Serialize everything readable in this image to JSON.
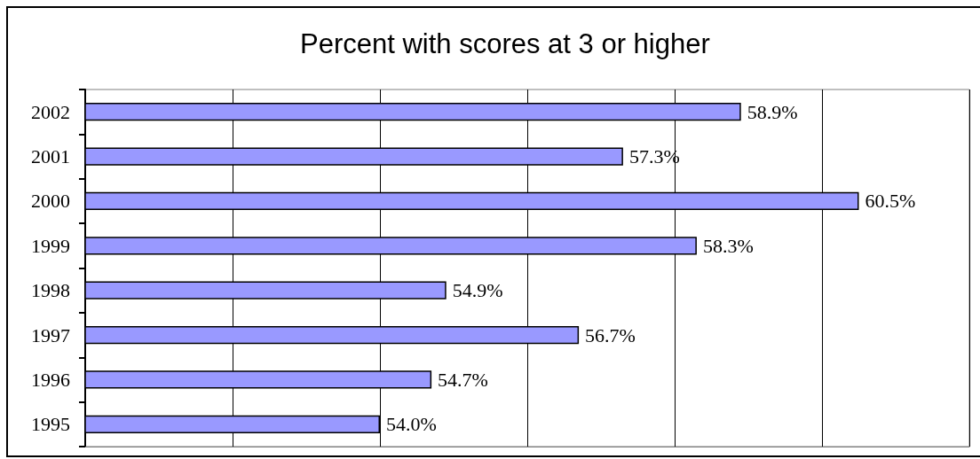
{
  "chart_data": {
    "type": "bar",
    "orientation": "horizontal",
    "title": "Percent with scores at 3 or higher",
    "categories": [
      "2002",
      "2001",
      "2000",
      "1999",
      "1998",
      "1997",
      "1996",
      "1995"
    ],
    "values": [
      58.9,
      57.3,
      60.5,
      58.3,
      54.9,
      56.7,
      54.7,
      54.0
    ],
    "value_labels": [
      "58.9%",
      "57.3%",
      "60.5%",
      "58.3%",
      "54.9%",
      "56.7%",
      "54.7%",
      "54.0%"
    ],
    "color": "#9999ff",
    "xlim": [
      50,
      62
    ],
    "xticks": [
      50,
      52,
      54,
      56,
      58,
      60,
      62
    ],
    "grid": "x",
    "tick_labels": "y"
  }
}
